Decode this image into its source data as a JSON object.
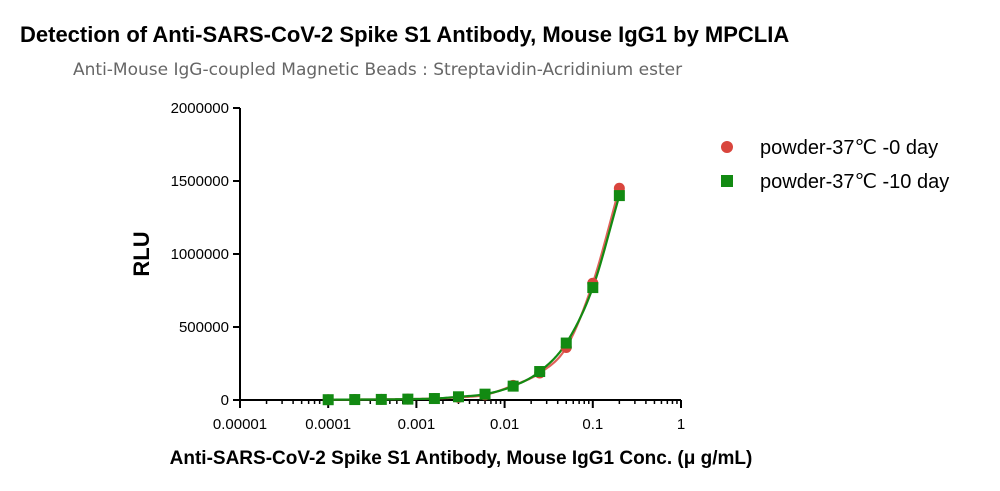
{
  "chart_data": {
    "type": "scatter",
    "title": "Detection of Anti-SARS-CoV-2 Spike S1 Antibody, Mouse IgG1 by MPCLIA",
    "subtitle": "Anti-Mouse IgG-coupled Magnetic Beads : Streptavidin-Acridinium ester",
    "xlabel": "Anti-SARS-CoV-2 Spike S1 Antibody, Mouse IgG1 Conc. (μ g/mL)",
    "ylabel": "RLU",
    "xscale": "log",
    "xlim": [
      1e-05,
      1
    ],
    "ylim": [
      0,
      2000000
    ],
    "x_ticks": [
      "0.00001",
      "0.0001",
      "0.001",
      "0.01",
      "0.1",
      "1"
    ],
    "y_ticks": [
      "0",
      "500000",
      "1000000",
      "1500000",
      "2000000"
    ],
    "legend_position": "top-right",
    "fitted_curves": true,
    "series": [
      {
        "name": "powder-37℃ -0 day",
        "marker": "circle",
        "color": "#d9453d",
        "x": [
          0.0001,
          0.0002,
          0.0004,
          0.0008,
          0.0016,
          0.003,
          0.006,
          0.0125,
          0.025,
          0.05,
          0.1,
          0.2
        ],
        "y": [
          2000,
          3000,
          4000,
          6000,
          10000,
          18000,
          35000,
          100000,
          185000,
          360000,
          800000,
          1450000
        ]
      },
      {
        "name": "powder-37℃ -10 day",
        "marker": "square",
        "color": "#128a12",
        "x": [
          0.0001,
          0.0002,
          0.0004,
          0.0008,
          0.0016,
          0.003,
          0.006,
          0.0125,
          0.025,
          0.05,
          0.1,
          0.2
        ],
        "y": [
          2000,
          3000,
          4000,
          6000,
          10000,
          22000,
          40000,
          95000,
          195000,
          390000,
          770000,
          1400000
        ]
      }
    ]
  }
}
